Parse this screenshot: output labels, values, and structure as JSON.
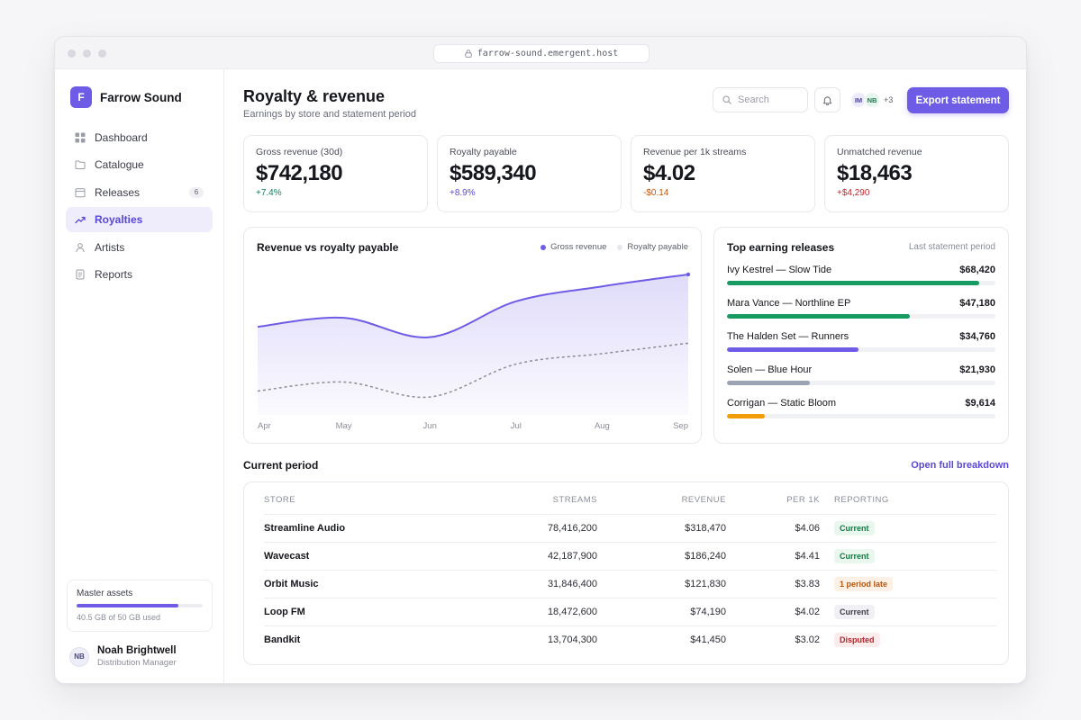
{
  "browser": {
    "url": "farrow-sound.emergent.host"
  },
  "brand": {
    "initial": "F",
    "name": "Farrow Sound"
  },
  "sidebar": {
    "items": [
      {
        "label": "Dashboard",
        "icon": "grid-icon"
      },
      {
        "label": "Catalogue",
        "icon": "folder-icon"
      },
      {
        "label": "Releases",
        "icon": "calendar-icon",
        "badge": "6"
      },
      {
        "label": "Royalties",
        "icon": "trend-icon",
        "active": true
      },
      {
        "label": "Artists",
        "icon": "user-icon"
      },
      {
        "label": "Reports",
        "icon": "document-icon"
      }
    ],
    "storage": {
      "label": "Master assets",
      "used_text": "40.5 GB of 50 GB used",
      "fraction": 0.81
    },
    "user": {
      "initials": "NB",
      "name": "Noah Brightwell",
      "role": "Distribution Manager"
    }
  },
  "header": {
    "title": "Royalty & revenue",
    "subtitle": "Earnings by store and statement period",
    "search_placeholder": "Search",
    "avatars": [
      "IM",
      "NB"
    ],
    "avatars_more": "+3",
    "export_label": "Export statement"
  },
  "kpis": [
    {
      "label": "Gross revenue (30d)",
      "value": "$742,180",
      "delta": "+7.4%",
      "delta_color": "#16805a"
    },
    {
      "label": "Royalty payable",
      "value": "$589,340",
      "delta": "+8.9%",
      "delta_color": "#5a48d6"
    },
    {
      "label": "Revenue per 1k streams",
      "value": "$4.02",
      "delta": "-$0.14",
      "delta_color": "#c2570f"
    },
    {
      "label": "Unmatched revenue",
      "value": "$18,463",
      "delta": "+$4,290",
      "delta_color": "#c0262d"
    }
  ],
  "chart_data": {
    "type": "area",
    "title": "Revenue vs royalty payable",
    "categories": [
      "Apr",
      "May",
      "Jun",
      "Jul",
      "Aug",
      "Sep"
    ],
    "series": [
      {
        "name": "Gross revenue",
        "color": "#6e5ce6",
        "style": "solid-area",
        "values": [
          0.59,
          0.65,
          0.52,
          0.76,
          0.86,
          0.94
        ]
      },
      {
        "name": "Royalty payable",
        "color": "#8c8c96",
        "style": "dashed",
        "values": [
          0.16,
          0.22,
          0.12,
          0.34,
          0.41,
          0.48
        ]
      }
    ],
    "ylim": [
      0,
      1
    ],
    "grid": false,
    "legend": "top-right"
  },
  "top_releases": {
    "title": "Top earning releases",
    "subtitle": "Last statement period",
    "items": [
      {
        "name": "Ivy Kestrel — Slow Tide",
        "amount": "$68,420",
        "fraction": 0.94,
        "color": "#169b62"
      },
      {
        "name": "Mara Vance — Northline EP",
        "amount": "$47,180",
        "fraction": 0.68,
        "color": "#169b62"
      },
      {
        "name": "The Halden Set — Runners",
        "amount": "$34,760",
        "fraction": 0.49,
        "color": "#6e5ce6"
      },
      {
        "name": "Solen — Blue Hour",
        "amount": "$21,930",
        "fraction": 0.31,
        "color": "#9aa3b2"
      },
      {
        "name": "Corrigan — Static Bloom",
        "amount": "$9,614",
        "fraction": 0.14,
        "color": "#f39c0a"
      }
    ]
  },
  "period": {
    "title": "Current period",
    "link": "Open full breakdown",
    "columns": [
      "STORE",
      "STREAMS",
      "REVENUE",
      "PER 1K",
      "REPORTING"
    ],
    "rows": [
      {
        "store": "Streamline Audio",
        "streams": "78,416,200",
        "revenue": "$318,470",
        "per1k": "$4.06",
        "status": "Current",
        "status_type": "current"
      },
      {
        "store": "Wavecast",
        "streams": "42,187,900",
        "revenue": "$186,240",
        "per1k": "$4.41",
        "status": "Current",
        "status_type": "current"
      },
      {
        "store": "Orbit Music",
        "streams": "31,846,400",
        "revenue": "$121,830",
        "per1k": "$3.83",
        "status": "1 period late",
        "status_type": "late"
      },
      {
        "store": "Loop FM",
        "streams": "18,472,600",
        "revenue": "$74,190",
        "per1k": "$4.02",
        "status": "Current",
        "status_type": "neutral"
      },
      {
        "store": "Bandkit",
        "streams": "13,704,300",
        "revenue": "$41,450",
        "per1k": "$3.02",
        "status": "Disputed",
        "status_type": "disputed"
      }
    ]
  }
}
